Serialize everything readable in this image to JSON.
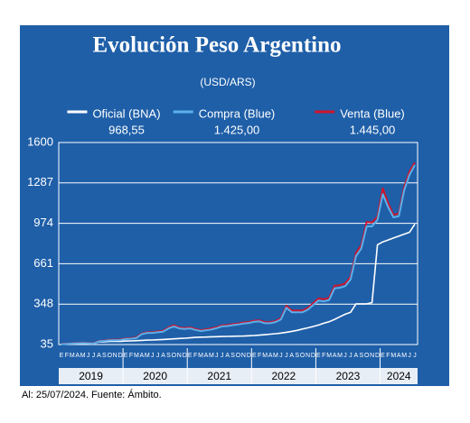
{
  "chart_data": {
    "type": "line",
    "title": "Evolución Peso Argentino",
    "subtitle": "(USD/ARS)",
    "footer": "Al: 25/07/2024. Fuente: Ámbito.",
    "categories": [
      "E",
      "F",
      "M",
      "A",
      "M",
      "J",
      "J",
      "A",
      "S",
      "O",
      "N",
      "D",
      "E",
      "F",
      "M",
      "A",
      "M",
      "J",
      "J",
      "A",
      "S",
      "O",
      "N",
      "D",
      "E",
      "F",
      "M",
      "A",
      "M",
      "J",
      "J",
      "A",
      "S",
      "O",
      "N",
      "D",
      "E",
      "F",
      "M",
      "A",
      "M",
      "J",
      "J",
      "A",
      "S",
      "O",
      "N",
      "D",
      "E",
      "F",
      "M",
      "A",
      "M",
      "J",
      "J",
      "A",
      "S",
      "O",
      "N",
      "D",
      "E",
      "F",
      "M",
      "A",
      "M",
      "J",
      "J"
    ],
    "x_groups": [
      {
        "label": "2019",
        "count": 12
      },
      {
        "label": "2020",
        "count": 12
      },
      {
        "label": "2021",
        "count": 12
      },
      {
        "label": "2022",
        "count": 12
      },
      {
        "label": "2023",
        "count": 12
      },
      {
        "label": "2024",
        "count": 7
      }
    ],
    "ylim": [
      35,
      1600
    ],
    "yticks": [
      35,
      348,
      661,
      974,
      1287,
      1600
    ],
    "grid": true,
    "series": [
      {
        "name": "Oficial (BNA)",
        "color": "#ffffff",
        "legend_value": 968.55,
        "legend_label": "968,55",
        "values": [
          38,
          38,
          40,
          43,
          45,
          43,
          43,
          56,
          57,
          60,
          60,
          60,
          62,
          63,
          65,
          67,
          69,
          70,
          72,
          74,
          76,
          79,
          82,
          84,
          87,
          90,
          92,
          93,
          95,
          96,
          97,
          98,
          99,
          100,
          101,
          103,
          105,
          108,
          111,
          115,
          119,
          124,
          130,
          137,
          145,
          155,
          164,
          175,
          186,
          200,
          212,
          230,
          250,
          270,
          285,
          350,
          350,
          350,
          360,
          808,
          830,
          845,
          860,
          875,
          890,
          905,
          968.55
        ]
      },
      {
        "name": "Venta (Blue)",
        "color": "#d0142c",
        "legend_value": 1445,
        "legend_label": "1.445,00",
        "values": [
          40,
          42,
          45,
          47,
          48,
          47,
          45,
          62,
          66,
          72,
          72,
          74,
          82,
          84,
          90,
          120,
          130,
          130,
          136,
          142,
          167,
          185,
          168,
          163,
          168,
          156,
          146,
          152,
          160,
          170,
          184,
          186,
          193,
          198,
          206,
          210,
          220,
          222,
          208,
          208,
          218,
          240,
          335,
          298,
          298,
          298,
          318,
          356,
          392,
          386,
          396,
          490,
          495,
          508,
          560,
          745,
          805,
          985,
          980,
          1025,
          1245,
          1130,
          1040,
          1050,
          1255,
          1375,
          1445
        ]
      },
      {
        "name": "Compra (Blue)",
        "color": "#5ab0ea",
        "legend_value": 1425,
        "legend_label": "1.425,00",
        "values": [
          38,
          40,
          43,
          45,
          46,
          45,
          43,
          60,
          63,
          68,
          68,
          70,
          78,
          80,
          85,
          115,
          125,
          125,
          130,
          135,
          160,
          175,
          160,
          155,
          160,
          148,
          140,
          145,
          152,
          162,
          176,
          178,
          185,
          190,
          198,
          202,
          212,
          214,
          200,
          200,
          210,
          230,
          320,
          285,
          285,
          285,
          305,
          340,
          375,
          370,
          380,
          470,
          475,
          488,
          540,
          720,
          780,
          950,
          950,
          1000,
          1200,
          1100,
          1020,
          1030,
          1230,
          1350,
          1425
        ]
      }
    ]
  }
}
